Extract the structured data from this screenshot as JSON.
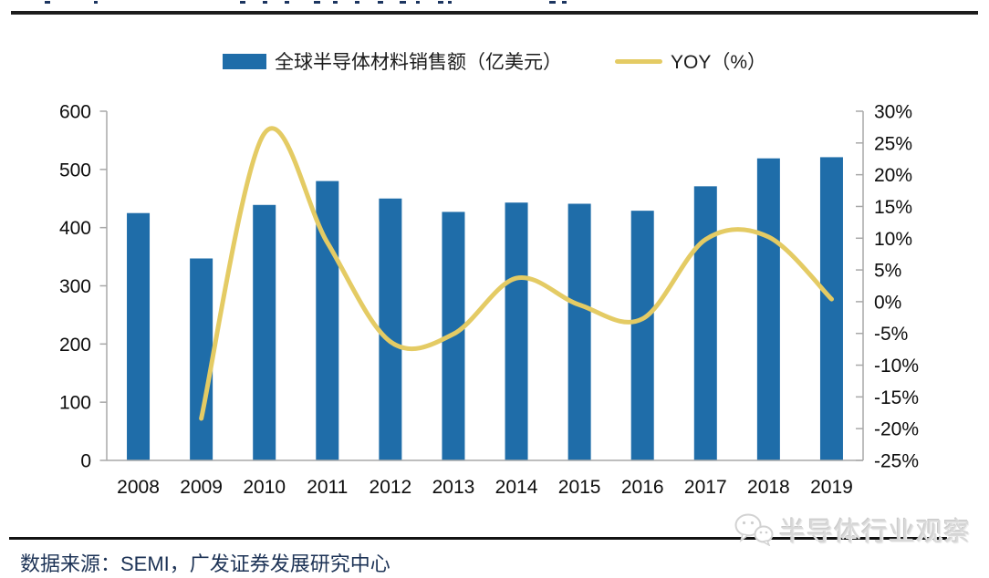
{
  "legend": [
    {
      "label": "全球半导体材料销售额（亿美元）",
      "type": "bar",
      "color": "#1f6da9"
    },
    {
      "label": "YOY（%）",
      "type": "line",
      "color": "#e4cb64"
    }
  ],
  "chart_data": {
    "type": "bar+line",
    "categories": [
      "2008",
      "2009",
      "2010",
      "2011",
      "2012",
      "2013",
      "2014",
      "2015",
      "2016",
      "2017",
      "2018",
      "2019"
    ],
    "series": [
      {
        "name": "全球半导体材料销售额（亿美元）",
        "type": "bar",
        "axis": "left",
        "color": "#1f6da9",
        "values": [
          425,
          347,
          439,
          480,
          450,
          427,
          443,
          441,
          429,
          471,
          519,
          521
        ]
      },
      {
        "name": "YOY（%）",
        "type": "line",
        "axis": "right",
        "color": "#e4cb64",
        "values": [
          null,
          -18.4,
          26.5,
          9.3,
          -6.3,
          -5.1,
          3.7,
          -0.5,
          -2.7,
          9.8,
          10.2,
          0.4
        ]
      }
    ],
    "left_axis": {
      "min": 0,
      "max": 600,
      "step": 100,
      "tick_labels": [
        "600",
        "500",
        "400",
        "300",
        "200",
        "100",
        "0"
      ]
    },
    "right_axis": {
      "min": -25,
      "max": 30,
      "step": 5,
      "tick_labels": [
        "30%",
        "25%",
        "20%",
        "15%",
        "10%",
        "5%",
        "0%",
        "-5%",
        "-10%",
        "-15%",
        "-20%",
        "-25%"
      ]
    },
    "grid": false,
    "legend_position": "top",
    "axis_color": "#a8a8a8"
  },
  "footer": {
    "source": "数据来源：SEMI，广发证券发展研究中心",
    "watermark": "半导体行业观察"
  }
}
